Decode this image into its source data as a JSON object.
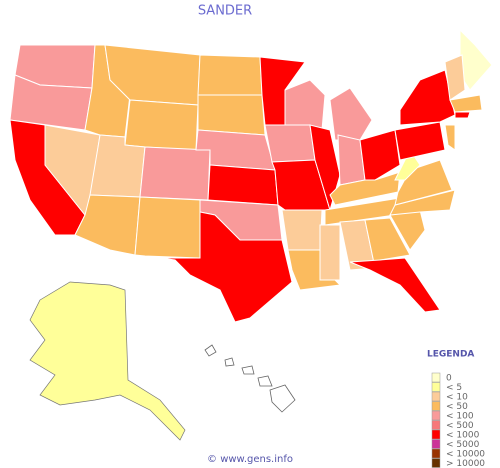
{
  "title": "SANDER",
  "legend": {
    "title": "LEGENDA",
    "items": [
      {
        "label": "0",
        "color": "#ffffcc"
      },
      {
        "label": "< 5",
        "color": "#ffff99"
      },
      {
        "label": "< 10",
        "color": "#fccc99"
      },
      {
        "label": "< 50",
        "color": "#fbbb5e"
      },
      {
        "label": "< 100",
        "color": "#f99a9a"
      },
      {
        "label": "< 500",
        "color": "#f7787a"
      },
      {
        "label": "< 1000",
        "color": "#ff0000"
      },
      {
        "label": "< 5000",
        "color": "#cc3399"
      },
      {
        "label": "< 10000",
        "color": "#993300"
      },
      {
        "label": "> 10000",
        "color": "#663300"
      }
    ]
  },
  "footer": "© www.gens.info"
}
